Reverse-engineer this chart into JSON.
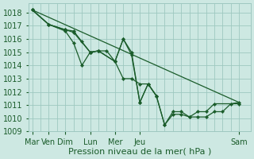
{
  "xlabel": "Pression niveau de la mer( hPa )",
  "background_color": "#cde8e2",
  "grid_color": "#9ec8c0",
  "line_color": "#1a5c2a",
  "ylim": [
    1009,
    1018.7
  ],
  "xlim": [
    -0.2,
    13.2
  ],
  "yticks": [
    1009,
    1010,
    1011,
    1012,
    1013,
    1014,
    1015,
    1016,
    1017,
    1018
  ],
  "xtick_labels": [
    "Mar",
    "Ven",
    "Dim",
    "Lun",
    "Mer",
    "Jeu",
    "",
    "",
    "",
    "Sam"
  ],
  "day_positions": {
    "Mar": 0,
    "Ven": 1,
    "Dim": 2,
    "Lun": 3.5,
    "Mer": 5,
    "Jeu": 6.5,
    "Sam": 12.5
  },
  "fontsize_axis": 7,
  "fontsize_xlabel": 8,
  "series1": [
    [
      0,
      1018.2
    ],
    [
      1,
      1017.1
    ],
    [
      2,
      1016.7
    ],
    [
      2.5,
      1016.6
    ],
    [
      3,
      1015.8
    ],
    [
      3.5,
      1015.0
    ],
    [
      4,
      1015.1
    ],
    [
      4.5,
      1015.1
    ],
    [
      5,
      1014.3
    ],
    [
      5.5,
      1013.0
    ],
    [
      6,
      1013.0
    ],
    [
      6.5,
      1012.6
    ],
    [
      7,
      1012.6
    ],
    [
      7.5,
      1011.7
    ],
    [
      8,
      1009.5
    ],
    [
      8.5,
      1010.5
    ],
    [
      9,
      1010.5
    ],
    [
      9.5,
      1010.1
    ],
    [
      10,
      1010.1
    ],
    [
      10.5,
      1010.1
    ],
    [
      11,
      1010.5
    ],
    [
      11.5,
      1010.5
    ],
    [
      12,
      1011.1
    ],
    [
      12.5,
      1011.2
    ]
  ],
  "series2": [
    [
      0,
      1018.2
    ],
    [
      1,
      1017.1
    ],
    [
      2,
      1016.6
    ],
    [
      2.5,
      1015.7
    ],
    [
      3,
      1014.0
    ],
    [
      3.5,
      1015.0
    ],
    [
      4,
      1015.1
    ],
    [
      5,
      1014.3
    ],
    [
      5.5,
      1016.0
    ],
    [
      6,
      1015.0
    ],
    [
      6.5,
      1011.2
    ],
    [
      7,
      1012.6
    ],
    [
      7.5,
      1011.7
    ],
    [
      8,
      1009.5
    ],
    [
      8.5,
      1010.3
    ],
    [
      9,
      1010.3
    ],
    [
      9.5,
      1010.1
    ],
    [
      10,
      1010.5
    ],
    [
      10.5,
      1010.5
    ],
    [
      11,
      1011.1
    ],
    [
      12.5,
      1011.1
    ]
  ],
  "series3": [
    [
      0,
      1018.2
    ],
    [
      1,
      1017.1
    ],
    [
      2,
      1016.7
    ],
    [
      2.5,
      1016.5
    ],
    [
      3.5,
      1015.0
    ],
    [
      4,
      1015.1
    ],
    [
      5,
      1014.3
    ],
    [
      5.5,
      1016.0
    ],
    [
      6,
      1014.8
    ],
    [
      6.5,
      1011.2
    ],
    [
      7,
      1012.6
    ],
    [
      7.5,
      1011.7
    ]
  ],
  "trend_line": [
    [
      0,
      1018.2
    ],
    [
      12.5,
      1011.2
    ]
  ]
}
